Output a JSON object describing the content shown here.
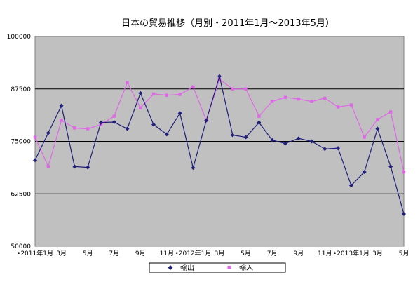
{
  "chart_data": {
    "type": "line",
    "title": "日本の貿易推移（月別・2011年1月〜2013年5月）",
    "xlabel": "",
    "ylabel": "",
    "ylim": [
      50000,
      100000
    ],
    "yticks": [
      "100000",
      "87500",
      "75000",
      "62500",
      "50000"
    ],
    "ytick_values": [
      100000,
      87500,
      75000,
      62500,
      50000
    ],
    "grid": true,
    "legend_position": "bottom",
    "x_tick_labels": [
      {
        "i": 0,
        "label": "•2011年1月"
      },
      {
        "i": 2,
        "label": "3月"
      },
      {
        "i": 4,
        "label": "5月"
      },
      {
        "i": 6,
        "label": "7月"
      },
      {
        "i": 8,
        "label": "9月"
      },
      {
        "i": 10,
        "label": "11月"
      },
      {
        "i": 12,
        "label": "•2012年1月"
      },
      {
        "i": 14,
        "label": "3月"
      },
      {
        "i": 16,
        "label": "5月"
      },
      {
        "i": 18,
        "label": "7月"
      },
      {
        "i": 20,
        "label": "9月"
      },
      {
        "i": 22,
        "label": "11月"
      },
      {
        "i": 24,
        "label": "•2013年1月"
      },
      {
        "i": 26,
        "label": "3月"
      },
      {
        "i": 28,
        "label": "5月"
      }
    ],
    "categories": [
      "2011-01",
      "2011-02",
      "2011-03",
      "2011-04",
      "2011-05",
      "2011-06",
      "2011-07",
      "2011-08",
      "2011-09",
      "2011-10",
      "2011-11",
      "2011-12",
      "2012-01",
      "2012-02",
      "2012-03",
      "2012-04",
      "2012-05",
      "2012-06",
      "2012-07",
      "2012-08",
      "2012-09",
      "2012-10",
      "2012-11",
      "2012-12",
      "2013-01",
      "2013-02",
      "2013-03",
      "2013-04",
      "2013-05"
    ],
    "series": [
      {
        "name": "輸出",
        "color": "#1f1f7a",
        "marker": "diamond",
        "values": [
          70500,
          77000,
          83500,
          69000,
          68800,
          79500,
          79600,
          78000,
          86500,
          79000,
          76700,
          81700,
          68700,
          80000,
          90500,
          76500,
          76000,
          79500,
          75300,
          74500,
          75700,
          75000,
          73200,
          73400,
          64500,
          67700,
          78000,
          69000,
          57700
        ]
      },
      {
        "name": "輸入",
        "color": "#e066e8",
        "marker": "square",
        "values": [
          76000,
          69000,
          80000,
          78200,
          78000,
          79000,
          81000,
          89000,
          83000,
          86300,
          86000,
          86200,
          88000,
          80000,
          89800,
          87500,
          87500,
          81000,
          84500,
          85500,
          85100,
          84500,
          85300,
          83200,
          83700,
          76000,
          80200,
          82000,
          67700
        ]
      }
    ]
  }
}
